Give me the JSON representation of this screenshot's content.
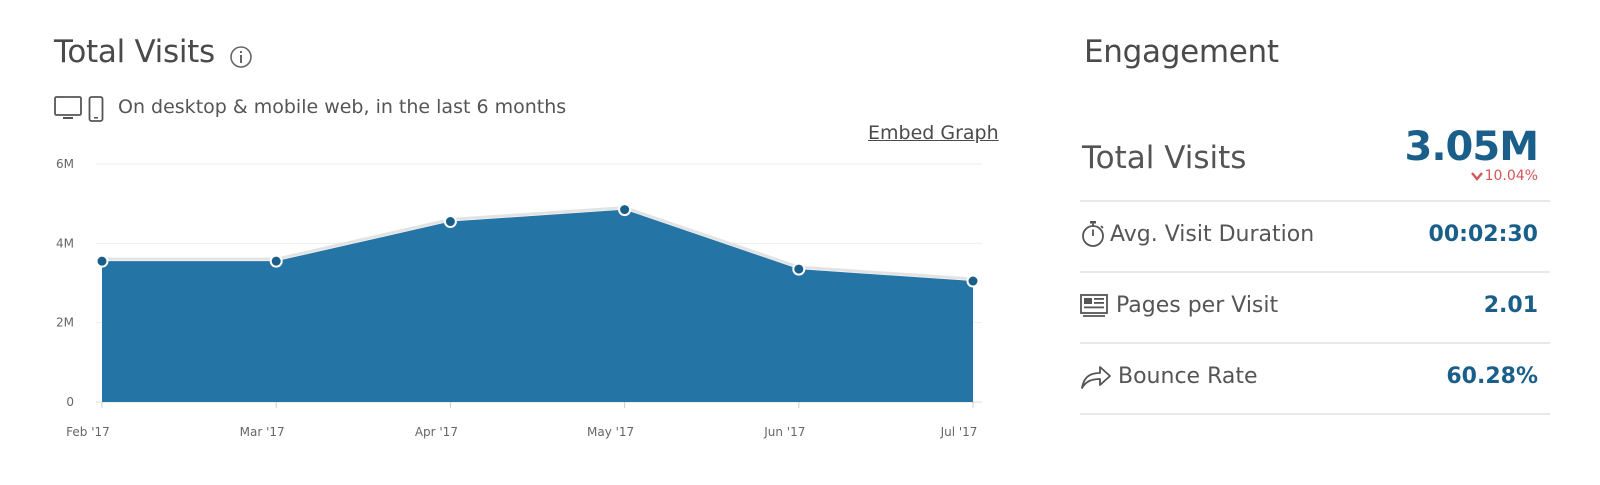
{
  "header": {
    "title": "Total Visits",
    "subtitle": "On desktop & mobile web, in the last 6 months",
    "embed_label": "Embed Graph"
  },
  "icons": {
    "info": "info-icon",
    "desktop": "desktop-icon",
    "mobile": "mobile-icon",
    "duration": "stopwatch-icon",
    "pages": "pages-icon",
    "bounce": "bounce-arrow-icon",
    "change": "chevron-down-icon"
  },
  "colors": {
    "area": "#2574a6",
    "line": "#e3e3e3",
    "point": "#1a5f8a",
    "value": "#1a5f8a",
    "negative": "#d45555"
  },
  "chart_data": {
    "type": "area",
    "categories": [
      "Feb '17",
      "Mar '17",
      "Apr '17",
      "May '17",
      "Jun '17",
      "Jul '17"
    ],
    "values": [
      3.55,
      3.55,
      4.55,
      4.85,
      3.35,
      3.05
    ],
    "unit": "M",
    "ylim": [
      0,
      6
    ],
    "yticks": [
      {
        "value": 0,
        "label": "0"
      },
      {
        "value": 2,
        "label": "2M"
      },
      {
        "value": 4,
        "label": "4M"
      },
      {
        "value": 6,
        "label": "6M"
      }
    ],
    "grid": true,
    "title": "",
    "xlabel": "",
    "ylabel": ""
  },
  "engagement": {
    "title": "Engagement",
    "total_visits": {
      "label": "Total Visits",
      "value": "3.05M",
      "change": "10.04%"
    },
    "avg_duration": {
      "label": "Avg. Visit Duration",
      "value": "00:02:30"
    },
    "pages_per_visit": {
      "label": "Pages per Visit",
      "value": "2.01"
    },
    "bounce_rate": {
      "label": "Bounce Rate",
      "value": "60.28%"
    }
  }
}
